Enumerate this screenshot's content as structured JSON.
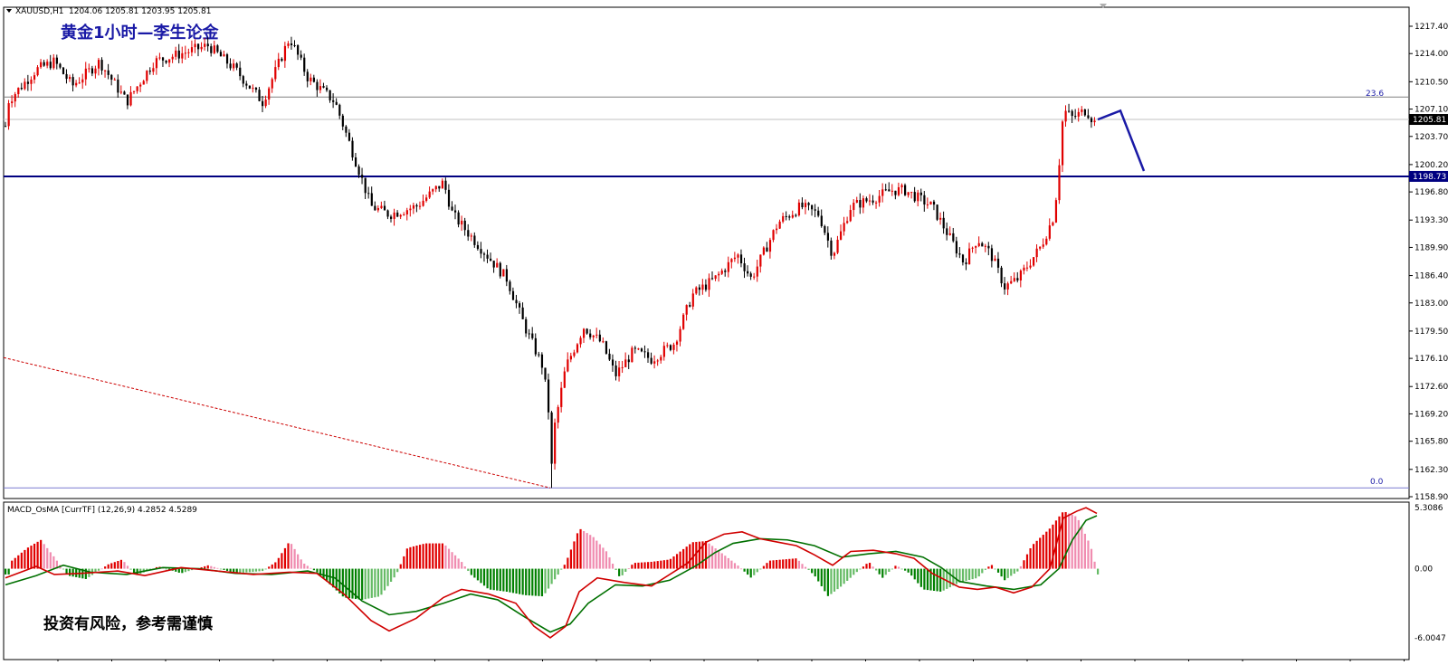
{
  "main_chart": {
    "symbol_header": "XAUUSD,H1",
    "ohlc": "1204.06 1205.81 1203.95 1205.81",
    "title": "黄金1小时—李生论金",
    "y_ticks": [
      "1217.40",
      "1214.00",
      "1210.50",
      "1207.10",
      "1203.70",
      "1200.20",
      "1196.80",
      "1193.30",
      "1189.90",
      "1186.40",
      "1183.00",
      "1179.50",
      "1176.10",
      "1172.60",
      "1169.20",
      "1165.80",
      "1162.30",
      "1158.90"
    ],
    "ylim": [
      1158.9,
      1217.4
    ],
    "fib_labels": {
      "top": "23.6",
      "bottom": "0.0"
    },
    "price_labels": {
      "current": "1205.81",
      "support": "1198.73"
    },
    "levels": {
      "fib_top": 1208.6,
      "current": 1205.81,
      "support": 1198.73,
      "fib_bottom": 1160.0
    },
    "colors": {
      "up": "#e00000",
      "down": "#000000",
      "support_line": "#000080",
      "fib_line": "#808080",
      "forecast": "#1a1aa6",
      "trend_dashed": "#cc0000"
    }
  },
  "macd_panel": {
    "header": "MACD_OsMA [CurrTF] (12,26,9) 4.2852 4.5289",
    "y_ticks": [
      "5.3086",
      "0.00",
      "-6.0047"
    ],
    "ylim": [
      -6.0047,
      5.3086
    ],
    "colors": {
      "pos_strong": "#e00000",
      "pos_weak": "#f08cb0",
      "neg_strong": "#008000",
      "neg_weak": "#66bb66",
      "macd_line": "#d00000",
      "signal_line": "#007000"
    }
  },
  "watermark": "投资有风险，参考需谨慎"
}
